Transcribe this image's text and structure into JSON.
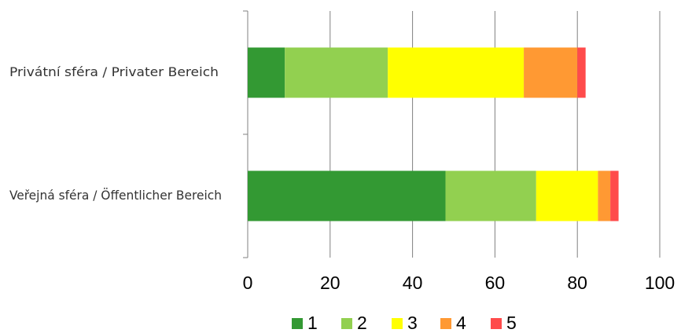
{
  "chart_data": {
    "type": "bar",
    "orientation": "horizontal",
    "stacked": true,
    "categories": [
      "Privátní sféra / Privater Bereich",
      "Veřejná sféra / Öffentlicher Bereich"
    ],
    "series": [
      {
        "name": "1",
        "color": "#339933",
        "values": [
          9,
          48
        ]
      },
      {
        "name": "2",
        "color": "#92d050",
        "values": [
          25,
          22
        ]
      },
      {
        "name": "3",
        "color": "#ffff00",
        "values": [
          33,
          15
        ]
      },
      {
        "name": "4",
        "color": "#ff9933",
        "values": [
          13,
          3
        ]
      },
      {
        "name": "5",
        "color": "#ff4b4b",
        "values": [
          2,
          2
        ]
      }
    ],
    "x_ticks": [
      "0",
      "20",
      "40",
      "60",
      "80",
      "100"
    ],
    "xlim": [
      0,
      100
    ],
    "grid": true,
    "legend_position": "bottom"
  }
}
